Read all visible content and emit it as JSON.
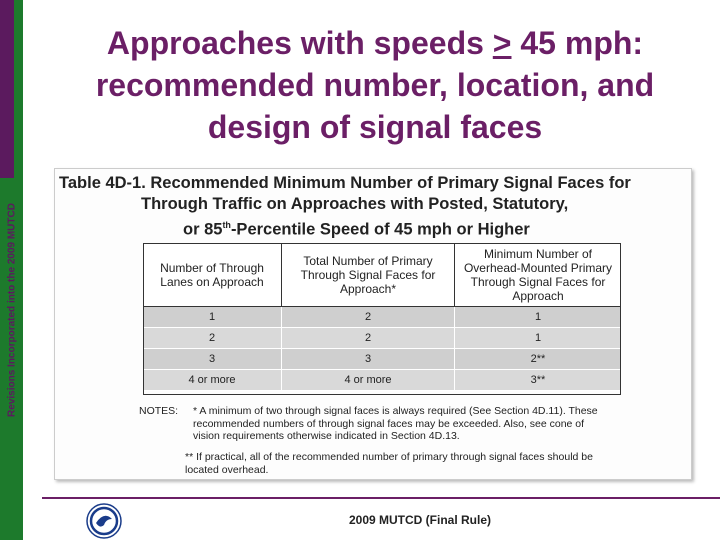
{
  "side_label": "Revisions Incorporated into the 2009 MUTCD",
  "title": {
    "line1_pre": "Approaches with speeds ",
    "line1_symbol": ">",
    "line1_post": " 45 mph:",
    "line2": "recommended number, location, and",
    "line3": "design of signal faces"
  },
  "table": {
    "title_line1": "Table 4D-1.  Recommended Minimum Number of Primary Signal Faces for",
    "title_line2": "Through Traffic on Approaches with Posted, Statutory,",
    "title_line3_pre": "or 85",
    "title_line3_sup": "th",
    "title_line3_post": "-Percentile Speed of 45 mph or Higher",
    "headers": [
      "Number of Through Lanes on Approach",
      "Total Number of Primary Through Signal Faces for Approach*",
      "Minimum Number of Overhead-Mounted Primary Through Signal Faces for Approach"
    ],
    "rows": [
      [
        "1",
        "2",
        "1"
      ],
      [
        "2",
        "2",
        "1"
      ],
      [
        "3",
        "3",
        "2**"
      ],
      [
        "4 or more",
        "4 or more",
        "3**"
      ]
    ],
    "notes_label": "NOTES:",
    "note1": "* A minimum of two through signal faces is always required (See Section 4D.11). These recommended numbers of through signal faces may be exceeded.  Also, see cone of vision requirements otherwise indicated in Section 4D.13.",
    "note2": "** If practical, all of the recommended number of primary through signal faces should be located overhead."
  },
  "footer": "2009 MUTCD (Final Rule)",
  "colors": {
    "purple": "#6b1f66",
    "green": "#1d7a2c"
  }
}
